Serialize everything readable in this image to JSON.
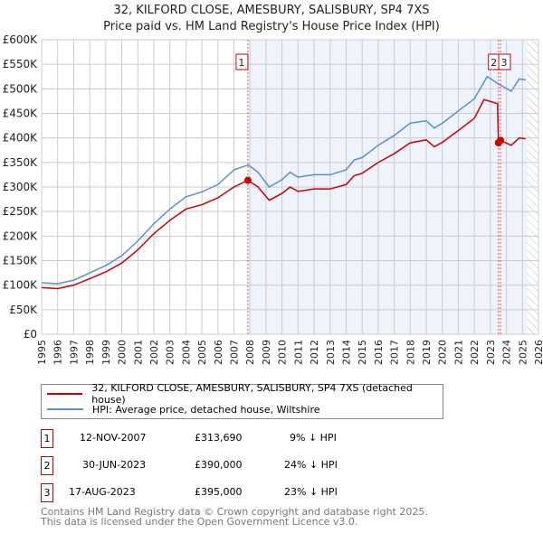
{
  "title": "32, KILFORD CLOSE, AMESBURY, SALISBURY, SP4 7XS",
  "subtitle": "Price paid vs. HM Land Registry's House Price Index (HPI)",
  "legend": {
    "property": "32, KILFORD CLOSE, AMESBURY, SALISBURY, SP4 7XS (detached house)",
    "hpi": "HPI: Average price, detached house, Wiltshire"
  },
  "sales": [
    {
      "num": "1",
      "date": "12-NOV-2007",
      "price": "£313,690",
      "diff": "9% ↓ HPI"
    },
    {
      "num": "2",
      "date": "30-JUN-2023",
      "price": "£390,000",
      "diff": "24% ↓ HPI"
    },
    {
      "num": "3",
      "date": "17-AUG-2023",
      "price": "£395,000",
      "diff": "23% ↓ HPI"
    }
  ],
  "footer": [
    "Contains HM Land Registry data © Crown copyright and database right 2025.",
    "This data is licensed under the Open Government Licence v3.0."
  ],
  "chart_data": {
    "type": "line",
    "xlim": [
      1995,
      2026
    ],
    "ylim": [
      0,
      600000
    ],
    "yticks": [
      "£0",
      "£50K",
      "£100K",
      "£150K",
      "£200K",
      "£250K",
      "£300K",
      "£350K",
      "£400K",
      "£450K",
      "£500K",
      "£550K",
      "£600K"
    ],
    "xticks": [
      1995,
      1996,
      1997,
      1998,
      1999,
      2000,
      2001,
      2002,
      2003,
      2004,
      2005,
      2006,
      2007,
      2008,
      2009,
      2010,
      2011,
      2012,
      2013,
      2014,
      2015,
      2016,
      2017,
      2018,
      2019,
      2020,
      2021,
      2022,
      2023,
      2024,
      2025,
      2026
    ],
    "colors": {
      "property": "#cc0000",
      "hpi": "#5b8fd0"
    },
    "series": [
      {
        "name": "HPI",
        "x": [
          1995,
          1996,
          1997,
          1998,
          1999,
          2000,
          2001,
          2002,
          2003,
          2004,
          2005,
          2006,
          2007,
          2007.9,
          2008.5,
          2009.2,
          2010,
          2010.5,
          2011,
          2012,
          2013,
          2014,
          2014.5,
          2015,
          2016,
          2017,
          2018,
          2019,
          2019.5,
          2020,
          2021,
          2022,
          2022.8,
          2023.5,
          2024.3,
          2024.8,
          2025.2
        ],
        "y": [
          105000,
          103000,
          110000,
          125000,
          140000,
          160000,
          190000,
          225000,
          255000,
          280000,
          290000,
          305000,
          335000,
          345000,
          330000,
          300000,
          315000,
          330000,
          320000,
          325000,
          325000,
          335000,
          355000,
          360000,
          385000,
          405000,
          430000,
          435000,
          420000,
          430000,
          455000,
          480000,
          525000,
          510000,
          495000,
          520000,
          518000
        ]
      },
      {
        "name": "Property",
        "x": [
          1995,
          1996,
          1997,
          1998,
          1999,
          2000,
          2001,
          2002,
          2003,
          2004,
          2005,
          2006,
          2007,
          2007.87,
          2008.5,
          2009.2,
          2010,
          2010.5,
          2011,
          2012,
          2013,
          2014,
          2014.5,
          2015,
          2016,
          2017,
          2018,
          2019,
          2019.5,
          2020,
          2021,
          2022,
          2022.6,
          2023.45,
          2023.5,
          2023.63,
          2024.3,
          2024.8,
          2025.2
        ],
        "y": [
          95000,
          93000,
          100000,
          113000,
          127000,
          145000,
          172000,
          205000,
          232000,
          255000,
          264000,
          278000,
          300000,
          313690,
          300000,
          273000,
          287000,
          300000,
          291000,
          296000,
          296000,
          305000,
          323000,
          328000,
          350000,
          368000,
          390000,
          396000,
          382000,
          391000,
          415000,
          440000,
          478000,
          470000,
          390000,
          395000,
          385000,
          400000,
          398000
        ]
      }
    ],
    "markers": [
      {
        "label": "1",
        "x": 2007.87,
        "y": 313690
      },
      {
        "label": "2",
        "x": 2023.5,
        "y": 390000
      },
      {
        "label": "3",
        "x": 2023.63,
        "y": 395000
      }
    ]
  }
}
